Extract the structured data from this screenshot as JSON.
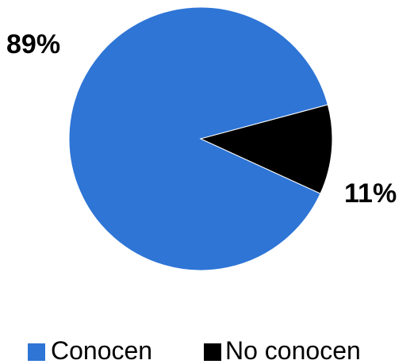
{
  "chart_data": {
    "type": "pie",
    "categories": [
      "Conocen",
      "No conocen"
    ],
    "values": [
      89,
      11
    ],
    "data_labels": [
      "89%",
      "11%"
    ],
    "colors": [
      "#2e75d6",
      "#000000"
    ],
    "legend": {
      "position": "bottom",
      "entries": [
        "Conocen",
        "No conocen"
      ]
    },
    "title": "",
    "start_angle_deg": 15,
    "direction": "counterclockwise"
  }
}
